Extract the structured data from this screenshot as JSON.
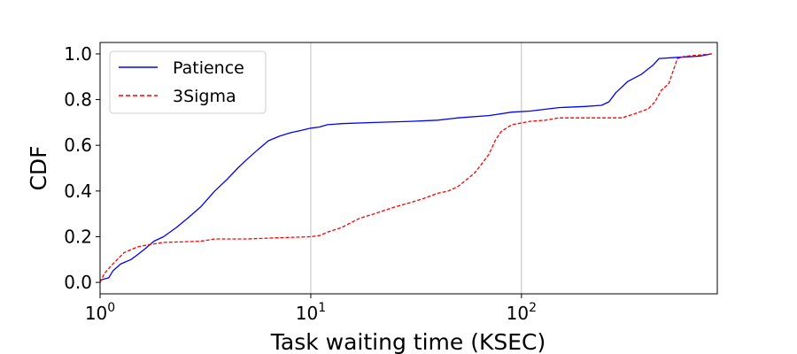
{
  "chart_data": {
    "type": "line",
    "title": "",
    "xlabel": "Task waiting time (KSEC)",
    "ylabel": "CDF",
    "xscale": "log",
    "xlim": [
      1,
      850
    ],
    "ylim": [
      -0.05,
      1.05
    ],
    "x_ticks": [
      {
        "value": 1,
        "base": "10",
        "exp": "0"
      },
      {
        "value": 10,
        "base": "10",
        "exp": "1"
      },
      {
        "value": 100,
        "base": "10",
        "exp": "2"
      }
    ],
    "y_ticks": [
      {
        "value": 0.0,
        "label": "0.0"
      },
      {
        "value": 0.2,
        "label": "0.2"
      },
      {
        "value": 0.4,
        "label": "0.4"
      },
      {
        "value": 0.6,
        "label": "0.6"
      },
      {
        "value": 0.8,
        "label": "0.8"
      },
      {
        "value": 1.0,
        "label": "1.0"
      }
    ],
    "grid": "x-major",
    "legend_position": "top-left",
    "series": [
      {
        "name": "Patience",
        "color": "#0000ff",
        "style": "solid",
        "points": [
          [
            1.0,
            0.01
          ],
          [
            1.1,
            0.02
          ],
          [
            1.15,
            0.05
          ],
          [
            1.25,
            0.08
          ],
          [
            1.4,
            0.1
          ],
          [
            1.5,
            0.12
          ],
          [
            1.65,
            0.15
          ],
          [
            1.8,
            0.18
          ],
          [
            2.0,
            0.2
          ],
          [
            2.3,
            0.24
          ],
          [
            2.6,
            0.28
          ],
          [
            3.0,
            0.33
          ],
          [
            3.5,
            0.4
          ],
          [
            4.0,
            0.45
          ],
          [
            4.5,
            0.5
          ],
          [
            5.0,
            0.54
          ],
          [
            5.6,
            0.58
          ],
          [
            6.3,
            0.62
          ],
          [
            7.1,
            0.64
          ],
          [
            8.0,
            0.655
          ],
          [
            9.0,
            0.665
          ],
          [
            10.0,
            0.675
          ],
          [
            11.0,
            0.68
          ],
          [
            12.0,
            0.69
          ],
          [
            14.0,
            0.695
          ],
          [
            20.0,
            0.7
          ],
          [
            30.0,
            0.705
          ],
          [
            40.0,
            0.71
          ],
          [
            50.0,
            0.72
          ],
          [
            70.0,
            0.73
          ],
          [
            90.0,
            0.745
          ],
          [
            110.0,
            0.75
          ],
          [
            150.0,
            0.765
          ],
          [
            200.0,
            0.77
          ],
          [
            240.0,
            0.775
          ],
          [
            260.0,
            0.79
          ],
          [
            280.0,
            0.83
          ],
          [
            320.0,
            0.88
          ],
          [
            370.0,
            0.91
          ],
          [
            420.0,
            0.95
          ],
          [
            450.0,
            0.98
          ],
          [
            550.0,
            0.985
          ],
          [
            700.0,
            0.99
          ],
          [
            800.0,
            1.0
          ]
        ]
      },
      {
        "name": "3Sigma",
        "color": "#ff0000",
        "style": "dashed",
        "points": [
          [
            1.0,
            0.0
          ],
          [
            1.05,
            0.04
          ],
          [
            1.15,
            0.08
          ],
          [
            1.3,
            0.13
          ],
          [
            1.5,
            0.155
          ],
          [
            1.7,
            0.165
          ],
          [
            2.0,
            0.175
          ],
          [
            3.0,
            0.18
          ],
          [
            3.5,
            0.19
          ],
          [
            5.0,
            0.19
          ],
          [
            7.0,
            0.195
          ],
          [
            10.0,
            0.2
          ],
          [
            11.0,
            0.205
          ],
          [
            12.0,
            0.22
          ],
          [
            14.0,
            0.24
          ],
          [
            17.0,
            0.28
          ],
          [
            20.0,
            0.3
          ],
          [
            25.0,
            0.33
          ],
          [
            30.0,
            0.35
          ],
          [
            35.0,
            0.37
          ],
          [
            40.0,
            0.39
          ],
          [
            45.0,
            0.4
          ],
          [
            50.0,
            0.42
          ],
          [
            55.0,
            0.45
          ],
          [
            60.0,
            0.48
          ],
          [
            65.0,
            0.52
          ],
          [
            70.0,
            0.56
          ],
          [
            75.0,
            0.62
          ],
          [
            80.0,
            0.66
          ],
          [
            90.0,
            0.69
          ],
          [
            110.0,
            0.705
          ],
          [
            130.0,
            0.71
          ],
          [
            150.0,
            0.72
          ],
          [
            200.0,
            0.72
          ],
          [
            300.0,
            0.72
          ],
          [
            350.0,
            0.74
          ],
          [
            400.0,
            0.76
          ],
          [
            430.0,
            0.79
          ],
          [
            460.0,
            0.84
          ],
          [
            500.0,
            0.87
          ],
          [
            550.0,
            0.98
          ],
          [
            600.0,
            0.99
          ],
          [
            700.0,
            0.995
          ],
          [
            800.0,
            1.0
          ]
        ]
      }
    ]
  }
}
